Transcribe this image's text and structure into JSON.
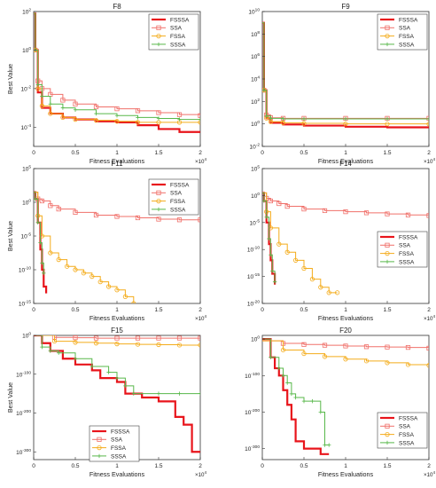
{
  "colors": {
    "FSSSA": "#e8141b",
    "SSA": "#f0706a",
    "FSSA": "#f4ac1b",
    "SSSA": "#58b84a"
  },
  "x_multiplier": "×10",
  "x_multiplier_exp": "4",
  "chart_data": [
    {
      "type": "line",
      "title": "F8",
      "xlabel": "Fitness Evaluations",
      "ylabel": "Best Value",
      "xlim": [
        0,
        2
      ],
      "x_scale_note": "x10^4",
      "yscale": "log",
      "ylim_exp": [
        -5,
        2
      ],
      "yticks_exp": [
        -4,
        -2,
        0,
        2
      ],
      "xticks": [
        "0",
        "0.5",
        "1",
        "1.5",
        "2"
      ],
      "legend": [
        "FSSSA",
        "SSA",
        "FSSA",
        "SSSA"
      ],
      "legend_position": "top-right",
      "series": [
        {
          "name": "FSSSA",
          "marker": "none",
          "x": [
            0,
            0.02,
            0.05,
            0.1,
            0.2,
            0.35,
            0.5,
            0.75,
            1.0,
            1.25,
            1.5,
            1.75,
            2.0
          ],
          "log10_y": [
            1.9,
            0.0,
            -2.2,
            -3.0,
            -3.3,
            -3.5,
            -3.6,
            -3.7,
            -3.75,
            -3.9,
            -4.1,
            -4.25,
            -4.3
          ]
        },
        {
          "name": "SSA",
          "marker": "square",
          "x": [
            0,
            0.02,
            0.05,
            0.1,
            0.2,
            0.35,
            0.5,
            0.75,
            1.0,
            1.25,
            1.5,
            1.75,
            2.0
          ],
          "log10_y": [
            1.9,
            0.0,
            -1.6,
            -2.0,
            -2.3,
            -2.6,
            -2.8,
            -2.95,
            -3.05,
            -3.15,
            -3.25,
            -3.35,
            -3.4
          ]
        },
        {
          "name": "FSSA",
          "marker": "circle",
          "x": [
            0,
            0.02,
            0.05,
            0.1,
            0.2,
            0.35,
            0.5,
            0.75,
            1.0,
            1.25,
            1.5,
            1.75,
            2.0
          ],
          "log10_y": [
            1.9,
            0.0,
            -2.0,
            -2.9,
            -3.3,
            -3.5,
            -3.6,
            -3.65,
            -3.7,
            -3.75,
            -3.75,
            -3.75,
            -3.75
          ]
        },
        {
          "name": "SSSA",
          "marker": "plus",
          "x": [
            0,
            0.02,
            0.05,
            0.1,
            0.2,
            0.35,
            0.5,
            0.75,
            1.0,
            1.25,
            1.5,
            1.75,
            2.0
          ],
          "log10_y": [
            1.9,
            0.0,
            -1.8,
            -2.4,
            -2.8,
            -3.0,
            -3.1,
            -3.3,
            -3.4,
            -3.5,
            -3.55,
            -3.6,
            -3.6
          ]
        }
      ]
    },
    {
      "type": "line",
      "title": "F9",
      "xlabel": "Fitness Evaluations",
      "ylabel": "",
      "xlim": [
        0,
        2
      ],
      "x_scale_note": "x10^4",
      "yscale": "log",
      "ylim_exp": [
        -2,
        10
      ],
      "yticks_exp": [
        -2,
        0,
        2,
        4,
        6,
        8,
        10
      ],
      "xticks": [
        "0",
        "0.5",
        "1",
        "1.5",
        "2"
      ],
      "legend": [
        "FSSSA",
        "SSA",
        "FSSA",
        "SSSA"
      ],
      "legend_position": "top-right",
      "series": [
        {
          "name": "FSSSA",
          "marker": "none",
          "x": [
            0,
            0.02,
            0.05,
            0.1,
            0.25,
            0.5,
            1.0,
            1.5,
            2.0
          ],
          "log10_y": [
            9.0,
            3.0,
            0.5,
            0.1,
            -0.05,
            -0.15,
            -0.25,
            -0.3,
            -0.3
          ]
        },
        {
          "name": "SSA",
          "marker": "square",
          "x": [
            0,
            0.02,
            0.05,
            0.1,
            0.25,
            0.5,
            1.0,
            1.5,
            2.0
          ],
          "log10_y": [
            9.0,
            3.0,
            0.8,
            0.55,
            0.5,
            0.5,
            0.5,
            0.5,
            0.5
          ]
        },
        {
          "name": "FSSA",
          "marker": "circle",
          "x": [
            0,
            0.02,
            0.05,
            0.1,
            0.25,
            0.5,
            1.0,
            1.5,
            2.0
          ],
          "log10_y": [
            9.0,
            3.0,
            0.5,
            0.2,
            0.1,
            0.05,
            0.0,
            0.0,
            0.0
          ]
        },
        {
          "name": "SSSA",
          "marker": "plus",
          "x": [
            0,
            0.02,
            0.05,
            0.1,
            0.25,
            0.5,
            1.0,
            1.5,
            2.0
          ],
          "log10_y": [
            9.0,
            3.0,
            0.7,
            0.5,
            0.45,
            0.45,
            0.45,
            0.45,
            0.45
          ]
        }
      ]
    },
    {
      "type": "line",
      "title": "F11",
      "xlabel": "Fitness Evaluations",
      "ylabel": "Best Value",
      "xlim": [
        0,
        2
      ],
      "x_scale_note": "x10^4",
      "yscale": "log",
      "ylim_exp": [
        -15,
        5
      ],
      "yticks_exp": [
        -15,
        -10,
        -5,
        0,
        5
      ],
      "xticks": [
        "0",
        "0.5",
        "1",
        "1.5",
        "2"
      ],
      "legend": [
        "FSSSA",
        "SSA",
        "FSSA",
        "SSSA"
      ],
      "legend_position": "top-right",
      "series": [
        {
          "name": "FSSSA",
          "marker": "none",
          "x": [
            0,
            0.02,
            0.05,
            0.08,
            0.1,
            0.12,
            0.15
          ],
          "log10_y": [
            1.5,
            0.5,
            -3.0,
            -7.0,
            -10.0,
            -12.5,
            -13.5
          ]
        },
        {
          "name": "SSA",
          "marker": "square",
          "x": [
            0,
            0.05,
            0.1,
            0.2,
            0.3,
            0.5,
            0.75,
            1.0,
            1.25,
            1.5,
            1.75,
            2.0
          ],
          "log10_y": [
            1.5,
            0.5,
            0.2,
            -0.5,
            -1.0,
            -1.5,
            -1.9,
            -2.1,
            -2.3,
            -2.5,
            -2.6,
            -2.6
          ]
        },
        {
          "name": "FSSA",
          "marker": "circle",
          "x": [
            0,
            0.05,
            0.1,
            0.2,
            0.3,
            0.4,
            0.5,
            0.6,
            0.7,
            0.8,
            0.9,
            1.0,
            1.1,
            1.2
          ],
          "log10_y": [
            1.5,
            -2.0,
            -5.0,
            -7.5,
            -8.5,
            -9.5,
            -10.0,
            -10.5,
            -11.0,
            -11.8,
            -12.5,
            -13.0,
            -14.0,
            -15.0
          ]
        },
        {
          "name": "SSSA",
          "marker": "plus",
          "x": [
            0,
            0.02,
            0.05,
            0.08,
            0.1,
            0.12
          ],
          "log10_y": [
            1.5,
            0.5,
            -3.0,
            -6.0,
            -9.0,
            -10.5
          ]
        }
      ]
    },
    {
      "type": "line",
      "title": "F14",
      "xlabel": "Fitness Evaluations",
      "ylabel": "",
      "xlim": [
        0,
        2
      ],
      "x_scale_note": "x10^4",
      "yscale": "log",
      "ylim_exp": [
        -20,
        5
      ],
      "yticks_exp": [
        -20,
        -15,
        -10,
        -5,
        0,
        5
      ],
      "xticks": [
        "0",
        "0.5",
        "1",
        "1.5",
        "2"
      ],
      "legend": [
        "FSSSA",
        "SSA",
        "FSSA",
        "SSSA"
      ],
      "legend_position": "right",
      "series": [
        {
          "name": "FSSSA",
          "marker": "none",
          "x": [
            0,
            0.02,
            0.05,
            0.08,
            0.1,
            0.12,
            0.15
          ],
          "log10_y": [
            0.5,
            -1.0,
            -5.0,
            -9.0,
            -12.0,
            -14.5,
            -16.5
          ]
        },
        {
          "name": "SSA",
          "marker": "square",
          "x": [
            0,
            0.05,
            0.1,
            0.2,
            0.3,
            0.5,
            0.75,
            1.0,
            1.25,
            1.5,
            1.75,
            2.0
          ],
          "log10_y": [
            0.5,
            -0.5,
            -1.0,
            -1.5,
            -2.0,
            -2.5,
            -2.8,
            -3.0,
            -3.2,
            -3.4,
            -3.6,
            -3.7
          ]
        },
        {
          "name": "FSSA",
          "marker": "circle",
          "x": [
            0,
            0.05,
            0.1,
            0.2,
            0.3,
            0.4,
            0.5,
            0.6,
            0.7,
            0.8,
            0.9
          ],
          "log10_y": [
            0.5,
            -3.0,
            -6.0,
            -9.0,
            -10.5,
            -12.0,
            -13.5,
            -15.5,
            -17.0,
            -18.0,
            -18.0
          ]
        },
        {
          "name": "SSSA",
          "marker": "plus",
          "x": [
            0,
            0.02,
            0.05,
            0.08,
            0.1,
            0.12,
            0.15
          ],
          "log10_y": [
            0.5,
            -1.0,
            -4.0,
            -8.0,
            -11.0,
            -14.0,
            -16.0
          ]
        }
      ]
    },
    {
      "type": "line",
      "title": "F15",
      "xlabel": "Fitness Evaluations",
      "ylabel": "Best Value",
      "xlim": [
        0,
        2
      ],
      "x_scale_note": "x10^4",
      "yscale": "log",
      "ylim_exp": [
        -320,
        0
      ],
      "yticks_exp": [
        -300,
        -200,
        -100,
        0
      ],
      "xticks": [
        "0",
        "0.5",
        "1",
        "1.5",
        "2"
      ],
      "legend": [
        "FSSSA",
        "SSA",
        "FSSA",
        "SSSA"
      ],
      "legend_position": "bottom-center",
      "series": [
        {
          "name": "FSSSA",
          "marker": "none",
          "x": [
            0,
            0.1,
            0.2,
            0.35,
            0.5,
            0.7,
            0.8,
            1.0,
            1.1,
            1.3,
            1.5,
            1.7,
            1.8,
            1.9,
            2.0
          ],
          "log10_y": [
            0,
            -20,
            -40,
            -60,
            -75,
            -90,
            -110,
            -120,
            -150,
            -160,
            -170,
            -210,
            -230,
            -300,
            -300
          ]
        },
        {
          "name": "SSA",
          "marker": "square",
          "x": [
            0,
            0.25,
            0.5,
            0.75,
            1.0,
            1.25,
            1.5,
            1.75,
            2.0
          ],
          "log10_y": [
            0,
            -5,
            -6,
            -7,
            -7,
            -7,
            -7,
            -7,
            -7
          ]
        },
        {
          "name": "FSSA",
          "marker": "circle",
          "x": [
            0,
            0.25,
            0.5,
            0.75,
            1.0,
            1.25,
            1.5,
            1.75,
            2.0
          ],
          "log10_y": [
            0,
            -15,
            -18,
            -20,
            -22,
            -23,
            -24,
            -25,
            -25
          ]
        },
        {
          "name": "SSSA",
          "marker": "plus",
          "x": [
            0,
            0.1,
            0.2,
            0.3,
            0.5,
            0.7,
            0.9,
            1.0,
            1.1,
            1.2,
            1.5,
            1.75,
            2.0
          ],
          "log10_y": [
            0,
            -30,
            -40,
            -45,
            -60,
            -80,
            -95,
            -110,
            -130,
            -150,
            -150,
            -150,
            -150
          ]
        }
      ]
    },
    {
      "type": "line",
      "title": "F20",
      "xlabel": "Fitness Evaluations",
      "ylabel": "",
      "xlim": [
        0,
        2
      ],
      "x_scale_note": "x10^4",
      "yscale": "log",
      "ylim_exp": [
        -330,
        10
      ],
      "yticks_exp": [
        -300,
        -200,
        -100,
        0
      ],
      "xticks": [
        "0",
        "0.5",
        "1",
        "1.5",
        "2"
      ],
      "legend": [
        "FSSSA",
        "SSA",
        "FSSA",
        "SSSA"
      ],
      "legend_position": "bottom-right",
      "series": [
        {
          "name": "FSSSA",
          "marker": "none",
          "x": [
            0,
            0.1,
            0.15,
            0.2,
            0.25,
            0.3,
            0.35,
            0.4,
            0.5,
            0.6,
            0.7,
            0.8
          ],
          "log10_y": [
            0,
            -50,
            -80,
            -100,
            -140,
            -180,
            -220,
            -280,
            -300,
            -300,
            -315,
            -315
          ]
        },
        {
          "name": "SSA",
          "marker": "square",
          "x": [
            0,
            0.25,
            0.5,
            0.75,
            1.0,
            1.25,
            1.5,
            1.75,
            2.0
          ],
          "log10_y": [
            -5,
            -12,
            -15,
            -17,
            -19,
            -21,
            -22,
            -23,
            -25
          ]
        },
        {
          "name": "FSSA",
          "marker": "circle",
          "x": [
            0,
            0.25,
            0.5,
            0.75,
            1.0,
            1.25,
            1.5,
            1.75,
            2.0
          ],
          "log10_y": [
            -5,
            -30,
            -40,
            -48,
            -55,
            -60,
            -65,
            -70,
            -72
          ]
        },
        {
          "name": "SSSA",
          "marker": "plus",
          "x": [
            0,
            0.1,
            0.2,
            0.25,
            0.3,
            0.35,
            0.4,
            0.5,
            0.6,
            0.7,
            0.75,
            0.8
          ],
          "log10_y": [
            0,
            -50,
            -80,
            -100,
            -120,
            -150,
            -160,
            -170,
            -170,
            -200,
            -290,
            -290
          ]
        }
      ]
    }
  ]
}
